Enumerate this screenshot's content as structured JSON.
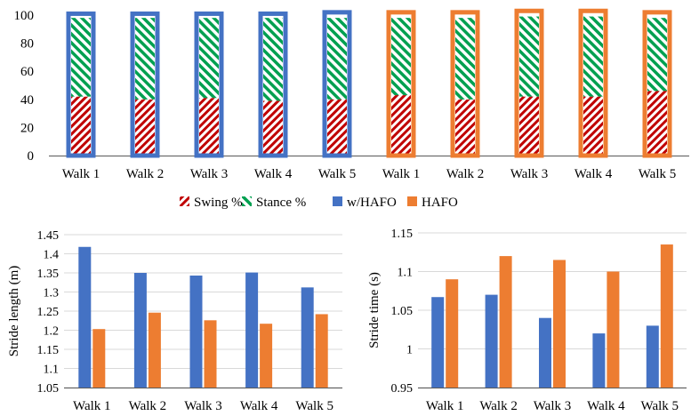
{
  "colors": {
    "whafo": "#4472C4",
    "hafo": "#ED7D31",
    "swing": "#C00000",
    "stance": "#00A050",
    "axis": "#595959",
    "grid": "#D9D9D9"
  },
  "legend": {
    "swing": "Swing %",
    "stance": "Stance %",
    "whafo": "w/HAFO",
    "hafo": "HAFO"
  },
  "chart_data": [
    {
      "type": "bar",
      "stacked": true,
      "categories": [
        "Walk 1",
        "Walk 2",
        "Walk 3",
        "Walk 4",
        "Walk 5",
        "Walk 1",
        "Walk 2",
        "Walk 3",
        "Walk 4",
        "Walk 5"
      ],
      "groups": [
        "w/HAFO",
        "w/HAFO",
        "w/HAFO",
        "w/HAFO",
        "w/HAFO",
        "HAFO",
        "HAFO",
        "HAFO",
        "HAFO",
        "HAFO"
      ],
      "series": [
        {
          "name": "Swing %",
          "values": [
            42,
            40,
            41,
            39,
            40,
            43,
            40,
            42,
            42,
            46
          ]
        },
        {
          "name": "Stance %",
          "values": [
            56,
            58,
            57,
            59,
            58,
            55,
            58,
            57,
            57,
            52
          ]
        }
      ],
      "outline_total": [
        101,
        101,
        101,
        101,
        102,
        102,
        102,
        103,
        103,
        102
      ],
      "ylim": [
        0,
        100
      ],
      "yticks": [
        0,
        20,
        40,
        60,
        80,
        100
      ],
      "legend_position": "bottom"
    },
    {
      "type": "bar",
      "categories": [
        "Walk 1",
        "Walk 2",
        "Walk 3",
        "Walk 4",
        "Walk 5"
      ],
      "series": [
        {
          "name": "w/HAFO",
          "values": [
            1.418,
            1.35,
            1.343,
            1.351,
            1.312
          ]
        },
        {
          "name": "HAFO",
          "values": [
            1.203,
            1.246,
            1.226,
            1.217,
            1.242
          ]
        }
      ],
      "ylabel": "Stride length (m)",
      "ylim": [
        1.05,
        1.45
      ],
      "yticks": [
        "1.05",
        "1.1",
        "1.15",
        "1.2",
        "1.25",
        "1.3",
        "1.35",
        "1.4",
        "1.45"
      ],
      "grid": true
    },
    {
      "type": "bar",
      "categories": [
        "Walk 1",
        "Walk 2",
        "Walk 3",
        "Walk 4",
        "Walk 5"
      ],
      "series": [
        {
          "name": "w/HAFO",
          "values": [
            1.067,
            1.07,
            1.04,
            1.02,
            1.03
          ]
        },
        {
          "name": "HAFO",
          "values": [
            1.09,
            1.12,
            1.115,
            1.1,
            1.135
          ]
        }
      ],
      "ylabel": "Stride time (s)",
      "ylim": [
        0.95,
        1.15
      ],
      "yticks": [
        "0.95",
        "1",
        "1.05",
        "1.1",
        "1.15"
      ],
      "grid": true
    }
  ]
}
